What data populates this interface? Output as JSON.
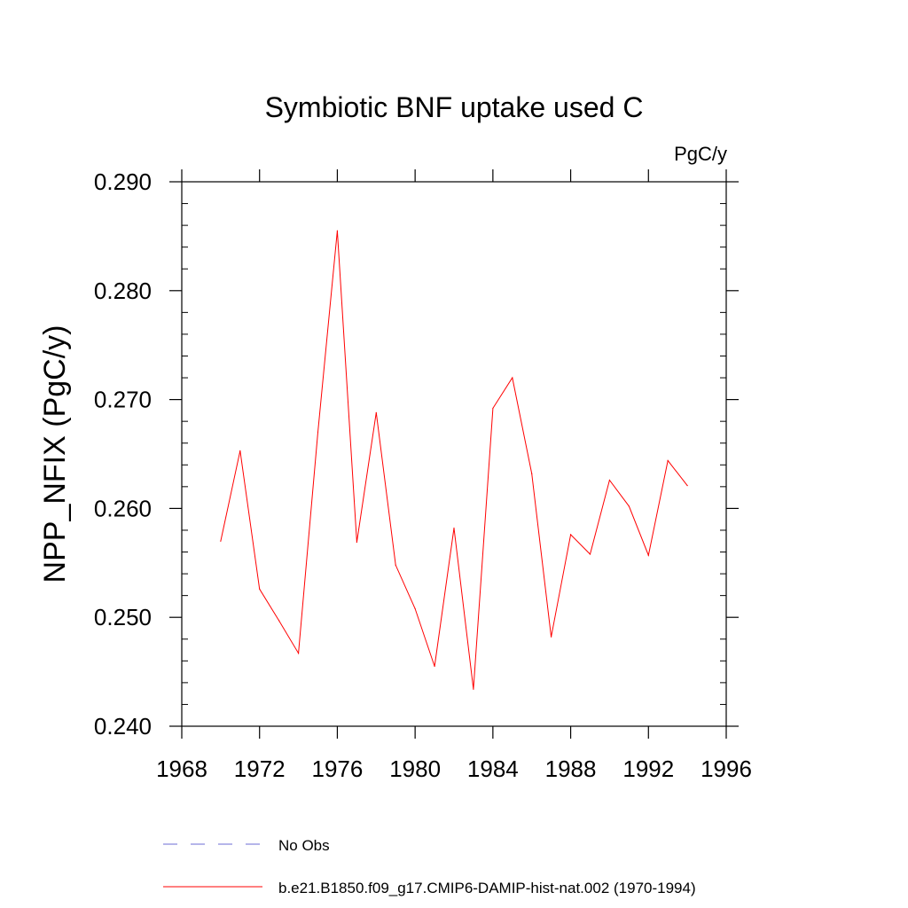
{
  "chart_data": {
    "type": "line",
    "title": "Symbiotic BNF uptake used C",
    "units_label": "PgC/y",
    "ylabel": "NPP_NFIX  (PgC/y)",
    "xlabel": "",
    "xlim": [
      1968,
      1996
    ],
    "ylim": [
      0.24,
      0.29
    ],
    "x_ticks": [
      1968,
      1972,
      1976,
      1980,
      1984,
      1988,
      1992,
      1996
    ],
    "x_tick_labels": [
      "1968",
      "1972",
      "1976",
      "1980",
      "1984",
      "1988",
      "1992",
      "1996"
    ],
    "y_ticks": [
      0.24,
      0.25,
      0.26,
      0.27,
      0.28,
      0.29
    ],
    "y_tick_labels": [
      "0.240",
      "0.250",
      "0.260",
      "0.270",
      "0.280",
      "0.290"
    ],
    "grid": false,
    "legend_position": "bottom",
    "series": [
      {
        "name": "No Obs",
        "color": "#6b6bd6",
        "dash": "dashed",
        "x": [],
        "values": []
      },
      {
        "name": "b.e21.B1850.f09_g17.CMIP6-DAMIP-hist-nat.002 (1970-1994)",
        "color": "#ff0000",
        "dash": "solid",
        "x": [
          1970,
          1971,
          1972,
          1973,
          1974,
          1975,
          1976,
          1977,
          1978,
          1979,
          1980,
          1981,
          1982,
          1983,
          1984,
          1985,
          1986,
          1987,
          1988,
          1989,
          1990,
          1991,
          1992,
          1993,
          1994
        ],
        "values": [
          0.257,
          0.2653,
          0.2526,
          0.2497,
          0.2467,
          0.267,
          0.2855,
          0.2569,
          0.2688,
          0.2548,
          0.2508,
          0.2455,
          0.2582,
          0.2434,
          0.2692,
          0.272,
          0.2632,
          0.2482,
          0.2576,
          0.2558,
          0.2626,
          0.2602,
          0.2557,
          0.2644,
          0.2621
        ]
      }
    ]
  }
}
